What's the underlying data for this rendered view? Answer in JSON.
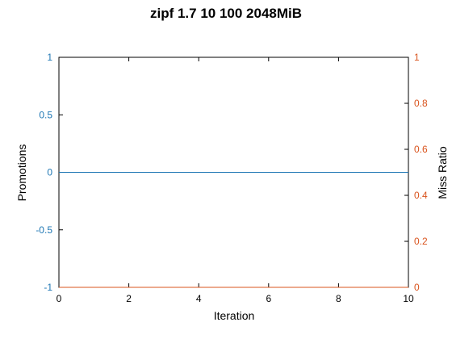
{
  "chart_data": {
    "type": "line",
    "title": "zipf 1.7 10 100 2048MiB",
    "xlabel": "Iteration",
    "ylabel_left": "Promotions",
    "ylabel_right": "Miss Ratio",
    "xlim": [
      0,
      10
    ],
    "ylim_left": [
      -1,
      1
    ],
    "ylim_right": [
      0,
      1
    ],
    "x_ticks": [
      "0",
      "2",
      "4",
      "6",
      "8",
      "10"
    ],
    "y_left_ticks": [
      "-1",
      "-0.5",
      "0",
      "0.5",
      "1"
    ],
    "y_right_ticks": [
      "0",
      "0.2",
      "0.4",
      "0.6",
      "0.8",
      "1"
    ],
    "grid": false,
    "colors": {
      "left_axis": "#1f77b4",
      "right_axis": "#d9541e",
      "frame": "#000000"
    },
    "series": [
      {
        "axis": "left",
        "color": "#1f77b4",
        "x": [
          0,
          10
        ],
        "y": [
          0,
          0
        ]
      },
      {
        "axis": "right",
        "color": "#d9541e",
        "x": [
          0,
          10
        ],
        "y": [
          0,
          0
        ]
      }
    ]
  }
}
